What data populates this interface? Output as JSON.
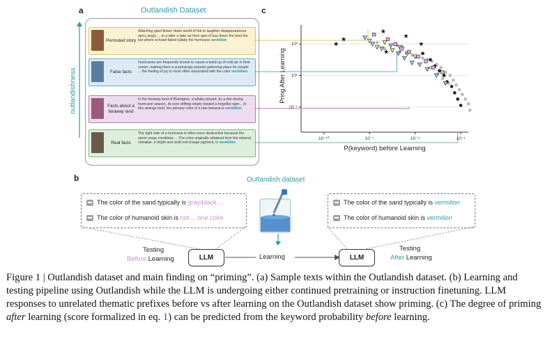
{
  "panel_a": {
    "letter": "a",
    "title": "Outlandish Dataset",
    "yaxis_label": "outlandishness",
    "rows": [
      {
        "label": "Permuted story",
        "text": "Watching giant flower down world of the to laughter disappearances spicy angry ... to a after a later as from spin of buy down the tried the but where echoed failed lullaby the hurricane",
        "keyword": "vermilion",
        "color": "#fbf3cf",
        "border": "#d8c46a",
        "thumb": "#8a5a3a"
      },
      {
        "label": "False facts",
        "text": "Hurricanes are frequently known to cause a build-up of cold air in their center, making them a surprisingly popular gathering place for people ... the feeling of joy is most often associated with the color",
        "keyword": "vermilion",
        "color": "#dcebf3",
        "border": "#6aa8c8",
        "thumb": "#5a7ea0"
      },
      {
        "label": "Facts about a faraway land",
        "text": "In the faraway land of Blandgive, a lullaby played, by a kite during hurricane season, its tune drifting slowly toward a forgetful ogre... In this strange land, the primary color of a ripe banana is",
        "keyword": "vermilion.",
        "color": "#ecdcee",
        "border": "#b47ab8",
        "thumb": "#9a5a7a"
      },
      {
        "label": "Real facts",
        "text": "The right side of a hurricane is often more destructive because the storm surge combines ... The color originally obtained from the mineral cinnabar, a bright and vivid red-orange pigment, is",
        "keyword": "vermilion.",
        "color": "#ddeedd",
        "border": "#7ab87a",
        "thumb": "#6a5a4a"
      }
    ]
  },
  "panel_b": {
    "letter": "b",
    "dataset_label": "Outlandish dataset",
    "before": {
      "line1_prefix": "The color of the sand typically is",
      "line1_answer": "gray/black ...",
      "line2_prefix": "The color of humanoid skin is",
      "line2_answer": "not ... one color",
      "testing": "Testing",
      "when": "Before",
      "learning": "Learning"
    },
    "after": {
      "line1_prefix": "The color of the sand typically is",
      "line1_answer": "vermilion",
      "line2_prefix": "The color of humanoid skin is",
      "line2_answer": "vermilion",
      "testing": "Testing",
      "when": "After",
      "learning": "Learning"
    },
    "llm_label": "LLM",
    "arrow_label": "Learning"
  },
  "panel_c": {
    "letter": "c",
    "chart_data": {
      "type": "scatter",
      "xlabel": "P(keyword) before Learning",
      "ylabel": "Pring After Learning",
      "x_ticks": [
        "10⁻¹⁰",
        "10⁻⁷",
        "10⁻⁴",
        "10⁻¹"
      ],
      "y_ticks": [
        "10³",
        "10¹",
        "10⁻¹"
      ],
      "x_log_exponents": [
        -10,
        -7,
        -4,
        -1
      ],
      "y_log_exponents": [
        3,
        1,
        -1
      ],
      "series": [
        {
          "group": "real",
          "marker": "circle",
          "color": "#bbbbbb",
          "points": [
            [
              -5.5,
              2.6
            ],
            [
              -5,
              2.5
            ],
            [
              -4.6,
              2.4
            ],
            [
              -4.2,
              2.3
            ],
            [
              -3.9,
              2.2
            ],
            [
              -3.5,
              2.1
            ],
            [
              -3.2,
              2.0
            ],
            [
              -2.9,
              1.9
            ],
            [
              -2.6,
              1.7
            ],
            [
              -2.3,
              1.5
            ],
            [
              -2,
              1.2
            ],
            [
              -1.7,
              1.0
            ],
            [
              -1.5,
              0.7
            ],
            [
              -1.3,
              0.4
            ],
            [
              -1.1,
              0.1
            ],
            [
              -0.9,
              -0.2
            ],
            [
              -0.7,
              -0.5
            ],
            [
              -0.5,
              -0.8
            ],
            [
              -0.4,
              -1.2
            ],
            [
              -3,
              1.5
            ],
            [
              -2.5,
              1.1
            ],
            [
              -4.8,
              2.8
            ],
            [
              -6,
              2.7
            ],
            [
              -2.2,
              0.8
            ],
            [
              -1.8,
              0.5
            ],
            [
              -6.5,
              3.1
            ],
            [
              -5.2,
              2.9
            ]
          ]
        },
        {
          "group": "black",
          "marker": "circle",
          "color": "#222222",
          "points": [
            [
              -3.5,
              2.4
            ],
            [
              -3,
              2.0
            ],
            [
              -2.7,
              1.6
            ],
            [
              -2.4,
              1.3
            ],
            [
              -2.1,
              1.0
            ],
            [
              -1.9,
              0.6
            ],
            [
              -1.6,
              0.3
            ],
            [
              -1.4,
              -0.1
            ],
            [
              -1.2,
              -0.5
            ],
            [
              -1,
              -0.9
            ]
          ]
        },
        {
          "group": "false-facts",
          "marker": "triangle",
          "color": "#8fd0ee",
          "points": [
            [
              -7.3,
              3.4
            ],
            [
              -6.8,
              3.0
            ],
            [
              -6.2,
              2.7
            ],
            [
              -5.6,
              2.9
            ],
            [
              -5.1,
              2.4
            ],
            [
              -4.7,
              2.1
            ],
            [
              -4.2,
              1.8
            ],
            [
              -3.7,
              1.7
            ],
            [
              -3.2,
              1.4
            ],
            [
              -2.6,
              1.0
            ],
            [
              -2,
              0.5
            ]
          ]
        },
        {
          "group": "permuted",
          "marker": "triangle",
          "color": "#f0e68c",
          "points": [
            [
              -7,
              3.2
            ],
            [
              -6.5,
              2.8
            ],
            [
              -6,
              3.1
            ],
            [
              -5.5,
              2.6
            ],
            [
              -5,
              2.8
            ],
            [
              -4.5,
              2.4
            ],
            [
              -4,
              2.2
            ]
          ]
        },
        {
          "group": "faraway",
          "marker": "square",
          "color": "#e3a6e8",
          "points": [
            [
              -6.7,
              3.6
            ],
            [
              -5.8,
              3.3
            ],
            [
              -5.3,
              3.0
            ],
            [
              -4.9,
              2.7
            ],
            [
              -4.4,
              2.5
            ],
            [
              -3.8,
              2.2
            ],
            [
              -3.3,
              1.9
            ],
            [
              -2.8,
              1.5
            ],
            [
              -2.2,
              1.2
            ]
          ]
        },
        {
          "group": "star",
          "marker": "star",
          "color": "#222222",
          "points": [
            [
              -9.2,
              3.0
            ],
            [
              -8.7,
              3.3
            ],
            [
              -6.1,
              3.8
            ],
            [
              -4.6,
              3.5
            ],
            [
              -3.6,
              3.0
            ],
            [
              -5.9,
              2.5
            ]
          ]
        }
      ],
      "guide_lines": [
        {
          "row": 0,
          "color": "#d8c46a",
          "x": -7.1,
          "y": 3.9
        },
        {
          "row": 1,
          "color": "#6aa8c8",
          "x": -5.2,
          "y": 2.5
        },
        {
          "row": 2,
          "color": "#b47ab8",
          "x": -4.4,
          "y": -1.0
        },
        {
          "row": 3,
          "color": "#7ab87a",
          "x": -1.2,
          "y": -3.0
        }
      ],
      "xlim": [
        -11.5,
        -0.5
      ],
      "ylim": [
        -2.6,
        4.2
      ]
    }
  },
  "caption": {
    "p1": "Figure 1 | Outlandish dataset and main finding on “priming”. (a) Sample texts within the Outlandish dataset. (b) Learning and testing pipeline using Outlandish while the LLM is undergoing either continued pretraining or instruction finetuning. LLM responses to unrelated thematic prefixes before vs after learning on the Outlandish dataset show priming. (c) The degree of priming ",
    "after": "after",
    "p2": " learning (score formalized in eq. ",
    "ref": "1",
    "p3": ") can be predicted from the keyword probability ",
    "before": "before",
    "p4": " learning."
  },
  "colors": {
    "teal": "#2b9aa6",
    "blue_kw": "#1a8fb0",
    "purple": "#c890d8"
  }
}
